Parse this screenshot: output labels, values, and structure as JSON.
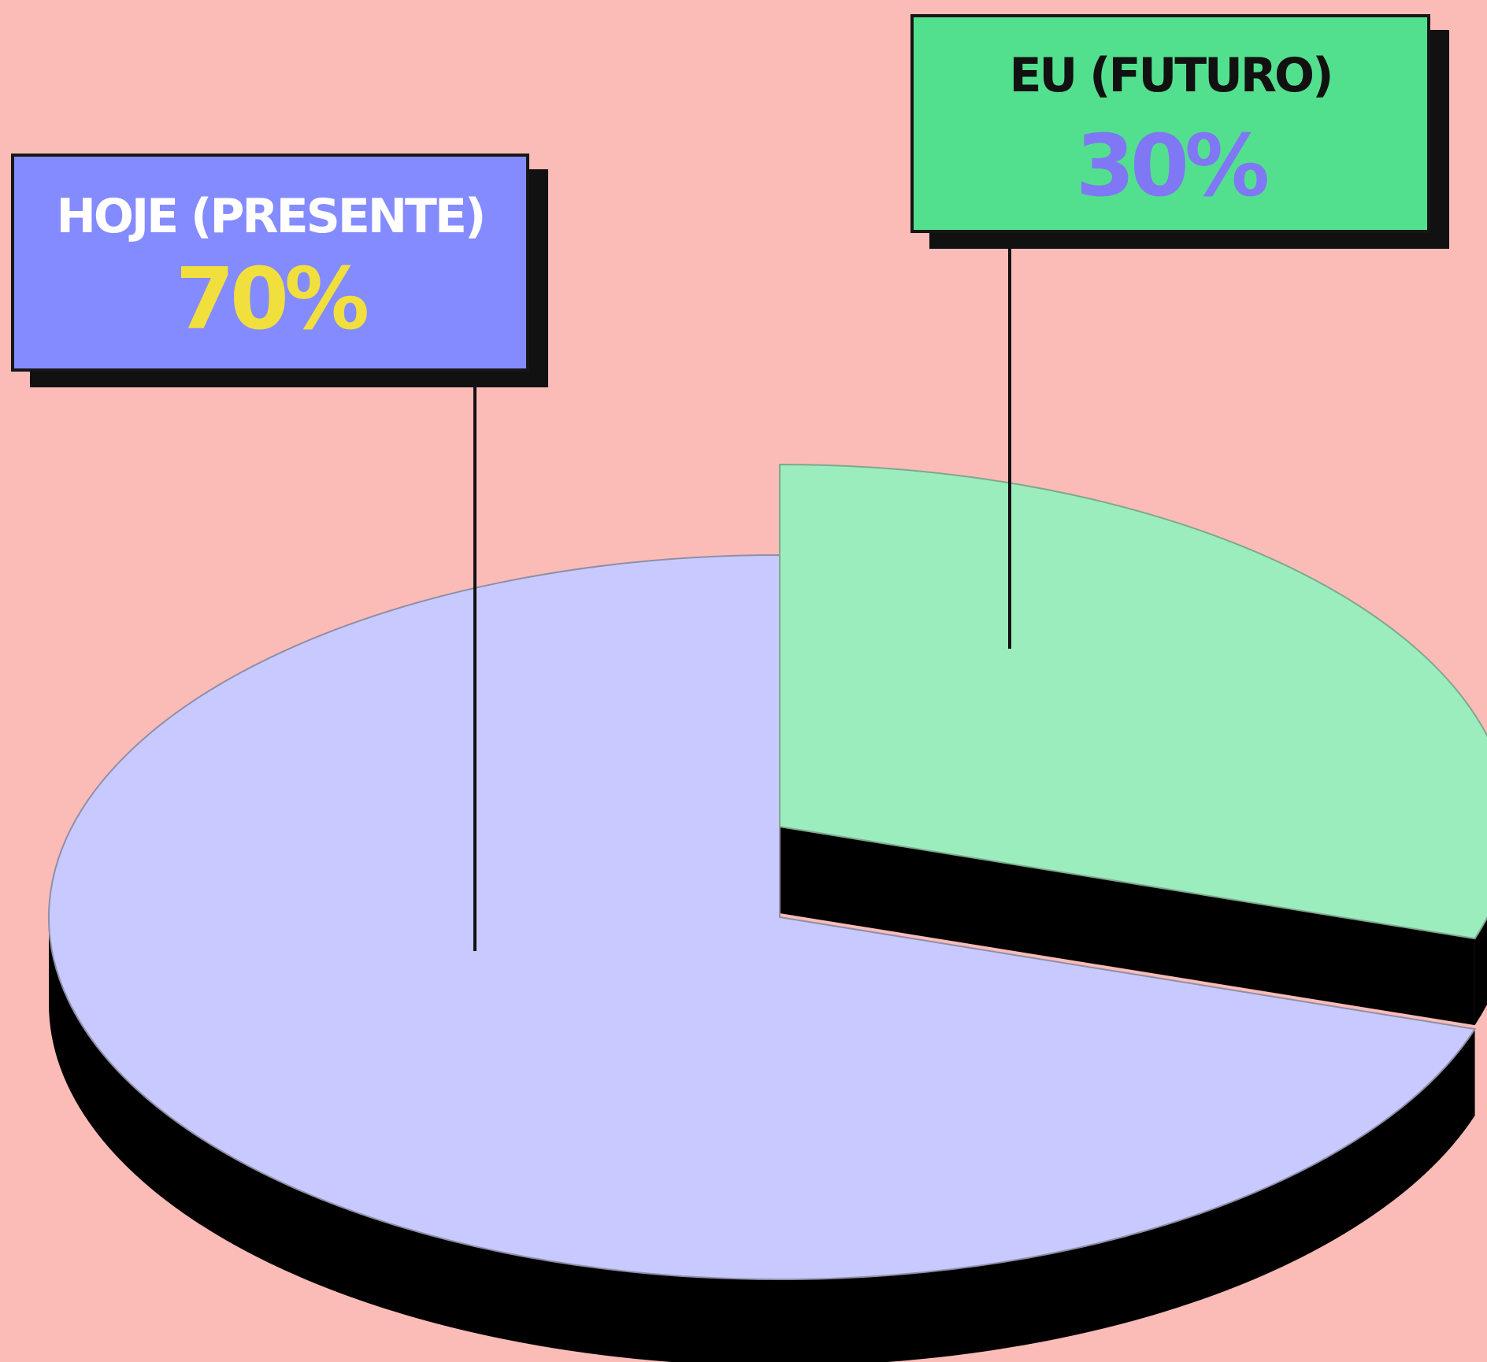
{
  "page": {
    "background": "#fbbcb8"
  },
  "chart_data": {
    "type": "pie",
    "categories": [
      "HOJE (PRESENTE)",
      "EU (FUTURO)"
    ],
    "values": [
      70,
      30
    ],
    "value_labels": [
      "70%",
      "30%"
    ],
    "unit": "%",
    "title": "",
    "legend": "none",
    "colors": {
      "present_slice": "#c8caff",
      "future_slice": "#9cedbd",
      "slice_side": "#000000",
      "present_box": "#848bff",
      "present_title_text": "#ffffff",
      "present_value_text": "#f1df3e",
      "future_box": "#53e08e",
      "future_title_text": "#111111",
      "future_value_text": "#7f77f4",
      "box_border": "#161616",
      "box_shadow": "#111111",
      "leader_line": "#111111"
    }
  }
}
